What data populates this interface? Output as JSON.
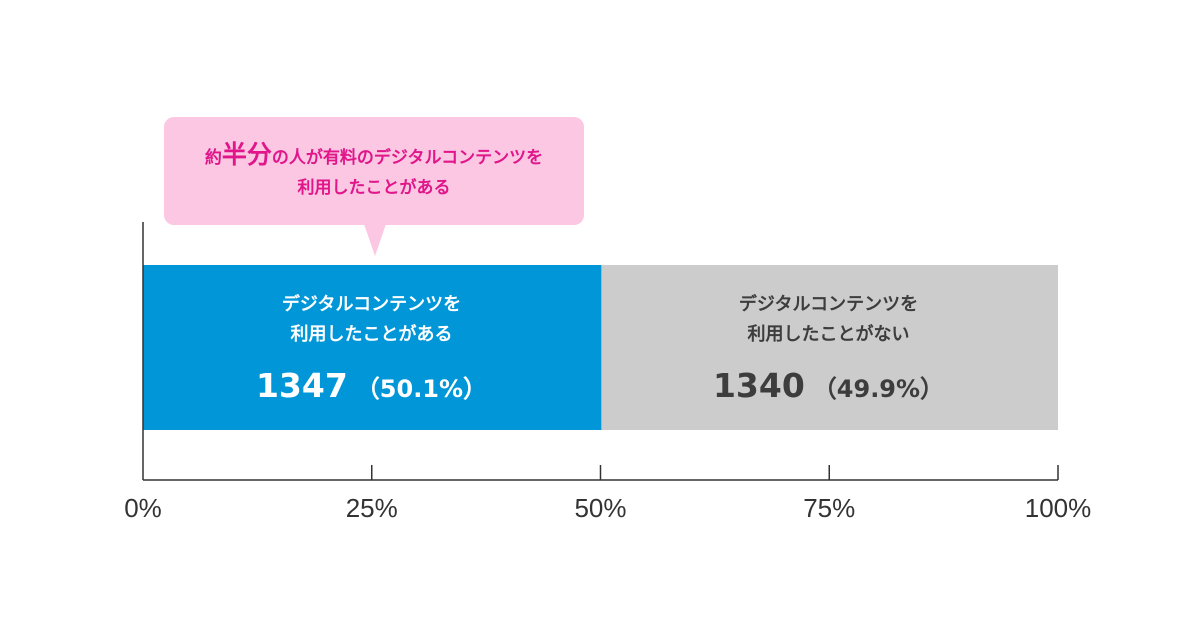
{
  "callout": {
    "prefix": "約",
    "emphasis": "半分",
    "suffix": "の人が有料のデジタルコンテンツを",
    "line2": "利用したことがある"
  },
  "chart_data": {
    "type": "bar",
    "orientation": "horizontal",
    "stacked": true,
    "categories": [
      "デジタルコンテンツを利用したことがある",
      "デジタルコンテンツを利用したことがない"
    ],
    "series": [
      {
        "name": "デジタルコンテンツを利用したことがある",
        "label_lines": [
          "デジタルコンテンツを",
          "利用したことがある"
        ],
        "count": 1347,
        "count_label": "1347",
        "percent": 50.1,
        "percent_label": "（50.1%）",
        "color": "#0096d8"
      },
      {
        "name": "デジタルコンテンツを利用したことがない",
        "label_lines": [
          "デジタルコンテンツを",
          "利用したことがない"
        ],
        "count": 1340,
        "count_label": "1340",
        "percent": 49.9,
        "percent_label": "（49.9%）",
        "color": "#cccccc"
      }
    ],
    "xlim": [
      0,
      100
    ],
    "xticks": [
      0,
      25,
      50,
      75,
      100
    ],
    "xtick_labels": [
      "0%",
      "25%",
      "50%",
      "75%",
      "100%"
    ],
    "title": "",
    "xlabel": "",
    "ylabel": "",
    "grid": false
  }
}
